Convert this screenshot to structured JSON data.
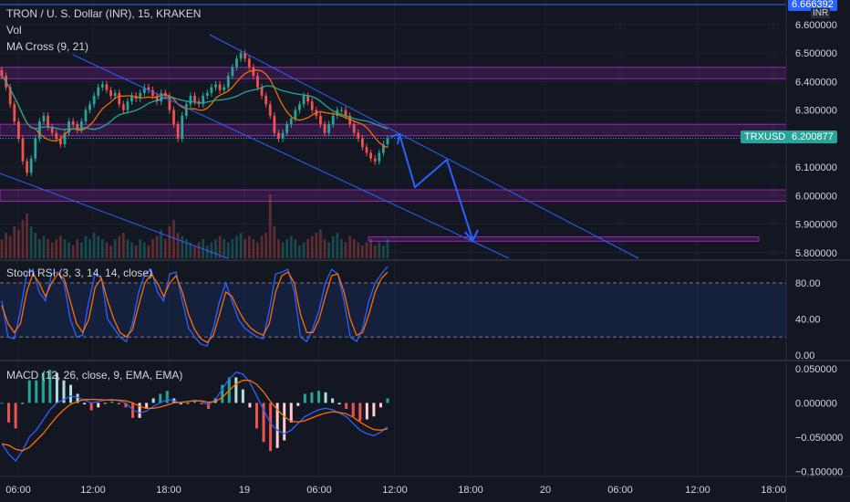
{
  "header": {
    "title": "TRON / U. S. Dollar (INR), 15, KRAKEN",
    "vol_label": "Vol",
    "ma_label": "MA Cross (9, 21)",
    "currency": "INR"
  },
  "price_badges": {
    "symbol": "TRXUSD",
    "current": "6.200877",
    "top": "6.666392"
  },
  "colors": {
    "background": "#131722",
    "up": "#26a69a",
    "down": "#ef5350",
    "ma_fast": "#ef6c00",
    "ma_slow": "#26a69a",
    "zone": "#9c27b0",
    "channel": "#2962ff",
    "stoch_k": "#2962ff",
    "stoch_d": "#ff6d00",
    "macd": "#2962ff",
    "signal": "#ff6d00"
  },
  "chart_data": [
    {
      "type": "candlestick",
      "title": "TRON / U. S. Dollar (INR), 15, KRAKEN",
      "ylim": [
        5.78,
        6.67
      ],
      "y_ticks": [
        "6.600000",
        "6.500000",
        "6.400000",
        "6.300000",
        "6.200000",
        "6.100000",
        "6.000000",
        "5.900000",
        "5.800000"
      ],
      "x_ticks": [
        "06:00",
        "12:00",
        "18:00",
        "19",
        "06:00",
        "12:00",
        "18:00",
        "20",
        "06:00",
        "12:00",
        "18:00"
      ],
      "last_price": 6.200877,
      "resistance_zones": [
        [
          6.41,
          6.45
        ],
        [
          6.21,
          6.25
        ],
        [
          5.98,
          6.02
        ],
        [
          5.84,
          5.855
        ]
      ],
      "closes": [
        6.42,
        6.38,
        6.32,
        6.26,
        6.2,
        6.12,
        6.08,
        6.13,
        6.2,
        6.26,
        6.28,
        6.24,
        6.22,
        6.2,
        6.18,
        6.22,
        6.26,
        6.25,
        6.23,
        6.26,
        6.3,
        6.32,
        6.35,
        6.38,
        6.39,
        6.37,
        6.35,
        6.36,
        6.32,
        6.3,
        6.33,
        6.35,
        6.34,
        6.36,
        6.38,
        6.37,
        6.35,
        6.33,
        6.36,
        6.35,
        6.3,
        6.25,
        6.2,
        6.28,
        6.32,
        6.35,
        6.33,
        6.32,
        6.35,
        6.36,
        6.38,
        6.39,
        6.37,
        6.38,
        6.42,
        6.45,
        6.48,
        6.5,
        6.48,
        6.45,
        6.42,
        6.38,
        6.35,
        6.32,
        6.28,
        6.22,
        6.2,
        6.22,
        6.25,
        6.27,
        6.3,
        6.32,
        6.35,
        6.33,
        6.3,
        6.28,
        6.25,
        6.22,
        6.25,
        6.28,
        6.3,
        6.3,
        6.28,
        6.25,
        6.22,
        6.2,
        6.17,
        6.15,
        6.13,
        6.12,
        6.15,
        6.18,
        6.2
      ],
      "volume": [
        0.3,
        0.4,
        0.35,
        0.5,
        0.45,
        0.6,
        0.7,
        0.5,
        0.4,
        0.3,
        0.35,
        0.3,
        0.25,
        0.3,
        0.35,
        0.3,
        0.25,
        0.2,
        0.3,
        0.25,
        0.35,
        0.3,
        0.4,
        0.35,
        0.3,
        0.25,
        0.2,
        0.3,
        0.35,
        0.4,
        0.3,
        0.25,
        0.2,
        0.3,
        0.25,
        0.2,
        0.3,
        0.35,
        0.45,
        0.3,
        0.5,
        0.6,
        0.4,
        0.35,
        0.3,
        0.25,
        0.2,
        0.25,
        0.3,
        0.2,
        0.25,
        0.3,
        0.35,
        0.3,
        0.25,
        0.3,
        0.35,
        0.4,
        0.3,
        0.35,
        0.3,
        0.25,
        0.35,
        0.4,
        1.0,
        0.5,
        0.3,
        0.25,
        0.3,
        0.35,
        0.3,
        0.2,
        0.25,
        0.3,
        0.35,
        0.4,
        0.45,
        0.3,
        0.25,
        0.35,
        0.4,
        0.3,
        0.25,
        0.35,
        0.3,
        0.25,
        0.2,
        0.25,
        0.3,
        0.2,
        0.25,
        0.2,
        0.3
      ]
    },
    {
      "type": "line",
      "title": "Stoch RSI (3, 3, 14, 14, close)",
      "ylim": [
        0,
        100
      ],
      "y_ticks": [
        "80.00",
        "40.00",
        "0.00"
      ],
      "bands": [
        20,
        80
      ],
      "series": [
        {
          "values": [
            60,
            20,
            18,
            50,
            90,
            95,
            70,
            60,
            90,
            92,
            80,
            40,
            20,
            22,
            60,
            90,
            85,
            40,
            30,
            20,
            15,
            35,
            70,
            90,
            95,
            70,
            60,
            90,
            92,
            60,
            30,
            20,
            12,
            10,
            30,
            60,
            80,
            60,
            40,
            30,
            25,
            20,
            18,
            50,
            90,
            92,
            95,
            70,
            20,
            15,
            30,
            50,
            80,
            95,
            90,
            60,
            20,
            15,
            30,
            60,
            80,
            90,
            98
          ]
        },
        {
          "values": [
            55,
            35,
            25,
            35,
            70,
            90,
            80,
            65,
            80,
            90,
            85,
            60,
            35,
            25,
            40,
            75,
            85,
            60,
            40,
            25,
            20,
            28,
            55,
            80,
            90,
            80,
            65,
            80,
            88,
            70,
            45,
            28,
            18,
            14,
            22,
            45,
            70,
            65,
            50,
            38,
            30,
            25,
            22,
            35,
            70,
            88,
            92,
            80,
            45,
            25,
            25,
            40,
            65,
            88,
            90,
            70,
            40,
            22,
            25,
            45,
            70,
            85,
            92
          ]
        }
      ]
    },
    {
      "type": "line",
      "title": "MACD (12, 26, close, 9, EMA, EMA)",
      "ylim": [
        -0.105,
        0.058
      ],
      "y_ticks": [
        "0.050000",
        "0.000000",
        "−0.050000",
        "−0.100000"
      ],
      "series": [
        {
          "values": [
            -0.06,
            -0.075,
            -0.085,
            -0.07,
            -0.05,
            -0.04,
            -0.025,
            -0.01,
            0.0,
            0.005,
            0.01,
            0.008,
            0.004,
            0.0,
            0.002,
            0.004,
            0.005,
            0.003,
            0.0,
            -0.01,
            -0.015,
            -0.012,
            -0.005,
            0.0,
            0.005,
            0.003,
            0.0,
            0.002,
            0.004,
            0.002,
            -0.003,
            0.005,
            0.02,
            0.035,
            0.045,
            0.042,
            0.03,
            0.01,
            -0.01,
            -0.03,
            -0.04,
            -0.045,
            -0.04,
            -0.03,
            -0.02,
            -0.015,
            -0.01,
            -0.008,
            -0.01,
            -0.015,
            -0.02,
            -0.03,
            -0.04,
            -0.045,
            -0.048,
            -0.043,
            -0.035
          ]
        },
        {
          "values": [
            -0.06,
            -0.062,
            -0.068,
            -0.07,
            -0.065,
            -0.055,
            -0.045,
            -0.032,
            -0.02,
            -0.01,
            -0.002,
            0.002,
            0.005,
            0.005,
            0.005,
            0.004,
            0.004,
            0.004,
            0.003,
            0.0,
            -0.005,
            -0.008,
            -0.008,
            -0.006,
            -0.003,
            0.0,
            0.001,
            0.002,
            0.003,
            0.003,
            0.001,
            0.002,
            0.008,
            0.018,
            0.028,
            0.033,
            0.033,
            0.027,
            0.016,
            0.002,
            -0.01,
            -0.02,
            -0.027,
            -0.028,
            -0.026,
            -0.022,
            -0.018,
            -0.015,
            -0.013,
            -0.014,
            -0.016,
            -0.021,
            -0.028,
            -0.034,
            -0.039,
            -0.04,
            -0.038
          ]
        }
      ]
    }
  ]
}
